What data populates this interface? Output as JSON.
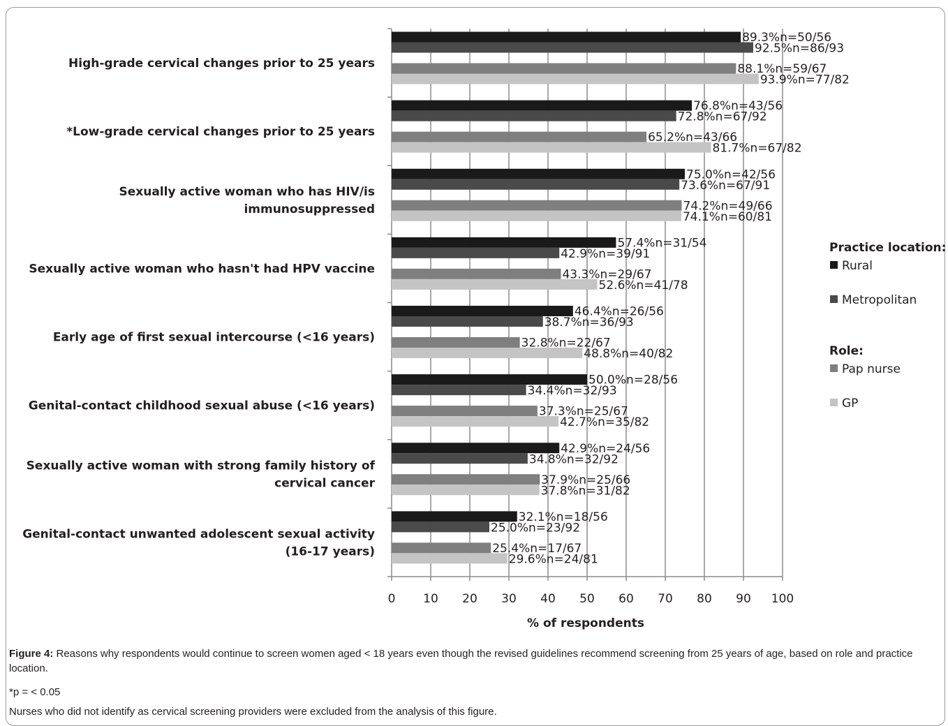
{
  "chart_data": {
    "type": "bar",
    "orientation": "horizontal",
    "categories": [
      [
        "High-grade cervical changes prior to 25 years"
      ],
      [
        "*Low-grade cervical changes prior to 25 years"
      ],
      [
        "Sexually active woman who has HIV/is",
        "immunosuppressed"
      ],
      [
        "Sexually active woman who hasn't had HPV vaccine"
      ],
      [
        "Early age of first sexual intercourse (<16 years)"
      ],
      [
        "Genital-contact childhood sexual abuse (<16 years)"
      ],
      [
        "Sexually active woman with strong family history of",
        "cervical cancer"
      ],
      [
        "Genital-contact unwanted adolescent sexual activity",
        "(16-17 years)"
      ]
    ],
    "series": [
      {
        "name": "Rural",
        "color": "#1a1a1a",
        "values": [
          89.3,
          76.8,
          75.0,
          57.4,
          46.4,
          50.0,
          42.9,
          32.1
        ],
        "labels": [
          "89.3%n=50/56",
          "76.8%n=43/56",
          "75.0%n=42/56",
          "57.4%n=31/54",
          "46.4%n=26/56",
          "50.0%n=28/56",
          "42.9%n=24/56",
          "32.1%n=18/56"
        ]
      },
      {
        "name": "Metropolitan",
        "color": "#4a4a4a",
        "values": [
          92.5,
          72.8,
          73.6,
          42.9,
          38.7,
          34.4,
          34.8,
          25.0
        ],
        "labels": [
          "92.5%n=86/93",
          "72.8%n=67/92",
          "73.6%n=67/91",
          "42.9%n=39/91",
          "38.7%n=36/93",
          "34.4%n=32/93",
          "34.8%n=32/92",
          "25.0%n=23/92"
        ]
      },
      {
        "name": "Pap nurse",
        "color": "#7f7f7f",
        "values": [
          88.1,
          65.2,
          74.2,
          43.3,
          32.8,
          37.3,
          37.9,
          25.4
        ],
        "labels": [
          "88.1%n=59/67",
          "65.2%n=43/66",
          "74.2%n=49/66",
          "43.3%n=29/67",
          "32.8%n=22/67",
          "37.3%n=25/67",
          "37.9%n=25/66",
          "25.4%n=17/67"
        ]
      },
      {
        "name": "GP",
        "color": "#c4c4c4",
        "values": [
          93.9,
          81.7,
          74.1,
          52.6,
          48.8,
          42.7,
          37.8,
          29.6
        ],
        "labels": [
          "93.9%n=77/82",
          "81.7%n=67/82",
          "74.1%n=60/81",
          "52.6%n=41/78",
          "48.8%n=40/82",
          "42.7%n=35/82",
          "37.8%n=31/82",
          "29.6%n=24/81"
        ]
      }
    ],
    "xlabel": "% of respondents",
    "xlim": [
      0,
      100
    ],
    "xticks": [
      0,
      10,
      20,
      30,
      40,
      50,
      60,
      70,
      80,
      90,
      100
    ],
    "grid": "vertical",
    "legend": {
      "placement": "right",
      "groups": [
        {
          "title": "Practice location:",
          "items": [
            "Rural",
            "Metropolitan"
          ]
        },
        {
          "title": "Role:",
          "items": [
            "Pap nurse",
            "GP"
          ]
        }
      ]
    }
  },
  "caption": {
    "figure_label": "Figure 4:",
    "text": " Reasons why respondents would continue to screen women aged < 18 years even though the revised guidelines recommend screening from 25 years of age, based on role and practice location.",
    "footnote": "*p = < 0.05",
    "note": "Nurses who did not identify as cervical screening providers were excluded from the analysis of this figure."
  }
}
